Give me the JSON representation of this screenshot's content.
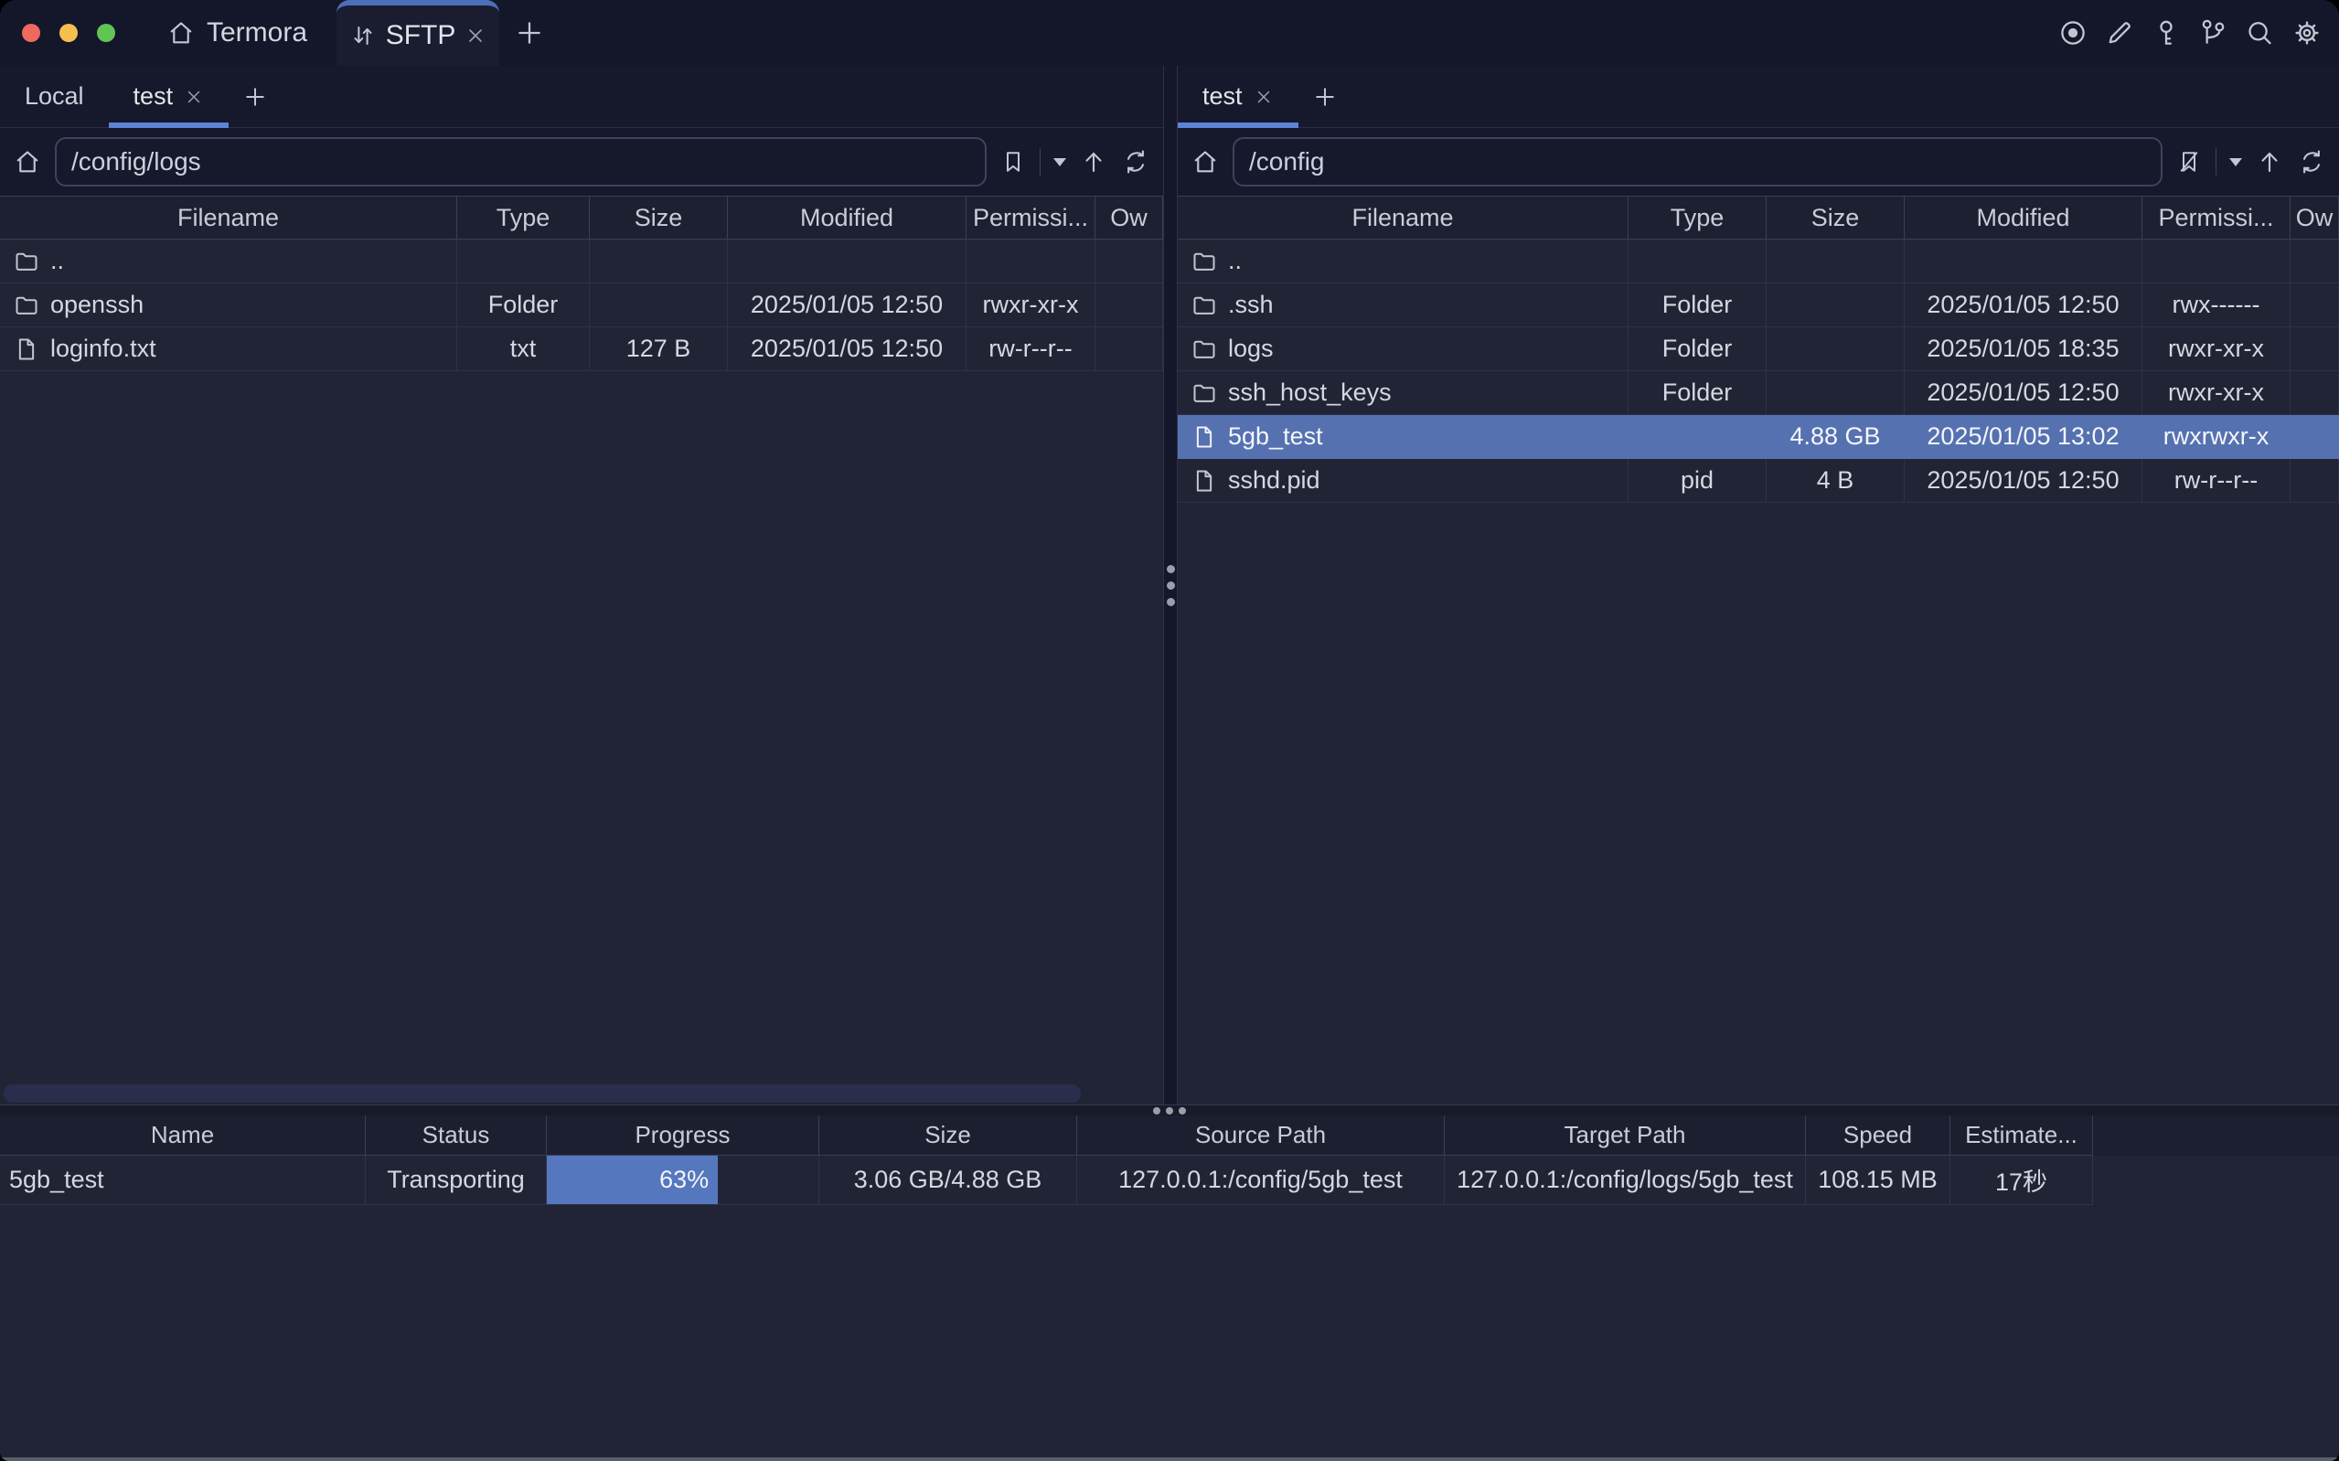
{
  "titlebar": {
    "app_tab": {
      "label": "Termora",
      "icon": "home-icon"
    },
    "sftp_tab": {
      "label": "SFTP",
      "icon": "transfer-arrows-icon",
      "close_icon": "close-icon"
    },
    "new_tab_icon": "plus-icon",
    "action_icons": [
      "record-icon",
      "pencil-icon",
      "key-icon",
      "branch-icon",
      "search-icon",
      "gear-icon"
    ]
  },
  "left_pane": {
    "tabs": [
      {
        "label": "Local",
        "active": false,
        "closable": false
      },
      {
        "label": "test",
        "active": true,
        "closable": true
      }
    ],
    "path": "/config/logs",
    "toolbar_icons": [
      "home-icon",
      "bookmark-icon",
      "caret-down-icon",
      "arrow-up-icon",
      "refresh-icon"
    ],
    "columns": [
      "Filename",
      "Type",
      "Size",
      "Modified",
      "Permissi...",
      "Ow"
    ],
    "rows": [
      {
        "icon": "folder",
        "name": "..",
        "type": "",
        "size": "",
        "modified": "",
        "permissions": "",
        "selected": false
      },
      {
        "icon": "folder",
        "name": "openssh",
        "type": "Folder",
        "size": "",
        "modified": "2025/01/05 12:50",
        "permissions": "rwxr-xr-x",
        "selected": false
      },
      {
        "icon": "file",
        "name": "loginfo.txt",
        "type": "txt",
        "size": "127 B",
        "modified": "2025/01/05 12:50",
        "permissions": "rw-r--r--",
        "selected": false
      }
    ]
  },
  "right_pane": {
    "tabs": [
      {
        "label": "test",
        "active": true,
        "closable": true
      }
    ],
    "path": "/config",
    "toolbar_icons": [
      "home-icon",
      "bookmark-slash-icon",
      "caret-down-icon",
      "arrow-up-icon",
      "refresh-icon"
    ],
    "columns": [
      "Filename",
      "Type",
      "Size",
      "Modified",
      "Permissi...",
      "Ow"
    ],
    "rows": [
      {
        "icon": "folder",
        "name": "..",
        "type": "",
        "size": "",
        "modified": "",
        "permissions": "",
        "selected": false
      },
      {
        "icon": "folder",
        "name": ".ssh",
        "type": "Folder",
        "size": "",
        "modified": "2025/01/05 12:50",
        "permissions": "rwx------",
        "selected": false
      },
      {
        "icon": "folder",
        "name": "logs",
        "type": "Folder",
        "size": "",
        "modified": "2025/01/05 18:35",
        "permissions": "rwxr-xr-x",
        "selected": false
      },
      {
        "icon": "folder",
        "name": "ssh_host_keys",
        "type": "Folder",
        "size": "",
        "modified": "2025/01/05 12:50",
        "permissions": "rwxr-xr-x",
        "selected": false
      },
      {
        "icon": "file",
        "name": "5gb_test",
        "type": "",
        "size": "4.88 GB",
        "modified": "2025/01/05 13:02",
        "permissions": "rwxrwxr-x",
        "selected": true
      },
      {
        "icon": "file",
        "name": "sshd.pid",
        "type": "pid",
        "size": "4 B",
        "modified": "2025/01/05 12:50",
        "permissions": "rw-r--r--",
        "selected": false
      }
    ]
  },
  "transfers": {
    "columns": [
      "Name",
      "Status",
      "Progress",
      "Size",
      "Source Path",
      "Target Path",
      "Speed",
      "Estimate..."
    ],
    "rows": [
      {
        "name": "5gb_test",
        "status": "Transporting",
        "progress_percent": 63,
        "progress_label": "63%",
        "size": "3.06 GB/4.88 GB",
        "source": "127.0.0.1:/config/5gb_test",
        "target": "127.0.0.1:/config/logs/5gb_test",
        "speed": "108.15 MB",
        "estimate": "17秒"
      }
    ]
  },
  "colors": {
    "selection": "#5571b0",
    "progress_fill": "#5577bd",
    "active_tab_accent": "#4b6fb9",
    "tab_underline": "#5b84d6",
    "traffic_lights": [
      "#ef6a5e",
      "#f5bf4f",
      "#61c554"
    ]
  }
}
